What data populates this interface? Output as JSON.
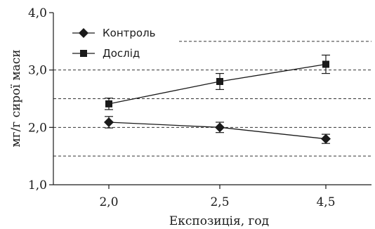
{
  "chart_data": {
    "type": "line",
    "title": "",
    "xlabel": "Експозиція, год",
    "ylabel": "мг/г сирої маси",
    "x": [
      "2,0",
      "2,5",
      "4,5"
    ],
    "ylim": [
      1.0,
      4.0
    ],
    "yticks": [
      1.0,
      2.0,
      3.0,
      4.0
    ],
    "ytick_labels": [
      "1,0",
      "2,0",
      "3,0",
      "4,0"
    ],
    "grid": "dashed horizontal",
    "legend_position": "top-left",
    "series": [
      {
        "name": "Контроль",
        "marker": "diamond",
        "values": [
          2.09,
          2.0,
          1.8
        ],
        "errors": [
          0.1,
          0.09,
          0.08
        ]
      },
      {
        "name": "Дослід",
        "marker": "square",
        "values": [
          2.41,
          2.8,
          3.1
        ],
        "errors": [
          0.1,
          0.14,
          0.16
        ]
      }
    ],
    "colors": {
      "line": "#1a1a1a",
      "grid": "#333333"
    }
  }
}
